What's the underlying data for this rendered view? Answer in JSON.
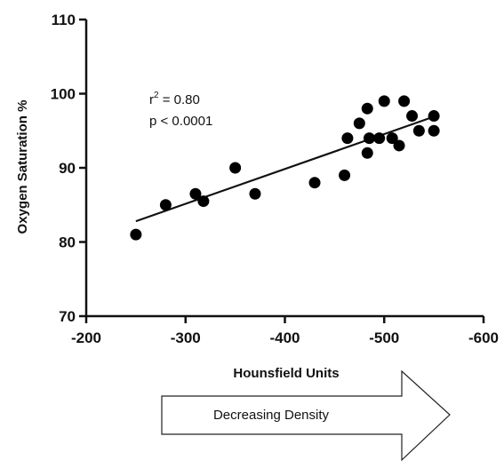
{
  "chart_data": {
    "type": "scatter",
    "xlabel": "Hounsfield Units",
    "ylabel": "Oxygen Saturation %",
    "xlim": [
      -200,
      -600
    ],
    "ylim": [
      70,
      110
    ],
    "x_ticks": [
      -200,
      -300,
      -400,
      -500,
      -600
    ],
    "y_ticks": [
      70,
      80,
      90,
      100,
      110
    ],
    "x_tick_labels": [
      "-200",
      "-300",
      "-400",
      "-500",
      "-600"
    ],
    "y_tick_labels": [
      "70",
      "80",
      "90",
      "100",
      "110"
    ],
    "points": [
      {
        "x": -250,
        "y": 81
      },
      {
        "x": -280,
        "y": 85
      },
      {
        "x": -310,
        "y": 86.5
      },
      {
        "x": -318,
        "y": 85.5
      },
      {
        "x": -350,
        "y": 90
      },
      {
        "x": -370,
        "y": 86.5
      },
      {
        "x": -430,
        "y": 88
      },
      {
        "x": -460,
        "y": 89
      },
      {
        "x": -463,
        "y": 94
      },
      {
        "x": -475,
        "y": 96
      },
      {
        "x": -483,
        "y": 98
      },
      {
        "x": -483,
        "y": 92
      },
      {
        "x": -485,
        "y": 94
      },
      {
        "x": -495,
        "y": 94
      },
      {
        "x": -500,
        "y": 99
      },
      {
        "x": -508,
        "y": 94
      },
      {
        "x": -515,
        "y": 93
      },
      {
        "x": -520,
        "y": 99
      },
      {
        "x": -528,
        "y": 97
      },
      {
        "x": -535,
        "y": 95
      },
      {
        "x": -550,
        "y": 97
      },
      {
        "x": -550,
        "y": 95
      }
    ],
    "regression_line": {
      "x": [
        -250,
        -550
      ],
      "y": [
        82.8,
        96.9
      ]
    },
    "annotations": {
      "r2_prefix": "r",
      "r2_sup": "2",
      "r2_suffix": " = 0.80",
      "p_value": "p < 0.0001"
    },
    "arrow_label": "Decreasing Density",
    "grid": false,
    "legend": "none"
  }
}
